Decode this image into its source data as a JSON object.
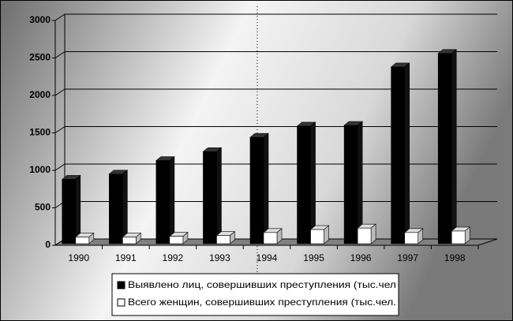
{
  "chart_data": {
    "type": "bar3d",
    "categories": [
      "1990",
      "1991",
      "1992",
      "1993",
      "1994",
      "1995",
      "1996",
      "1997",
      "1998"
    ],
    "series": [
      {
        "name": "Выявлено лиц, совершивших преступления (тыс.чел",
        "color": "#000000",
        "values": [
          880,
          950,
          1130,
          1250,
          1440,
          1590,
          1600,
          2380,
          2560
        ]
      },
      {
        "name": "Всего женщин, совершивших преступления (тыс.чел.",
        "color": "#ffffff",
        "values": [
          110,
          110,
          120,
          130,
          170,
          210,
          230,
          170,
          190
        ]
      }
    ],
    "ylim": [
      0,
      3000
    ],
    "yticks": [
      0,
      500,
      1000,
      1500,
      2000,
      2500,
      3000
    ],
    "grid": true,
    "legend": "bottom"
  }
}
